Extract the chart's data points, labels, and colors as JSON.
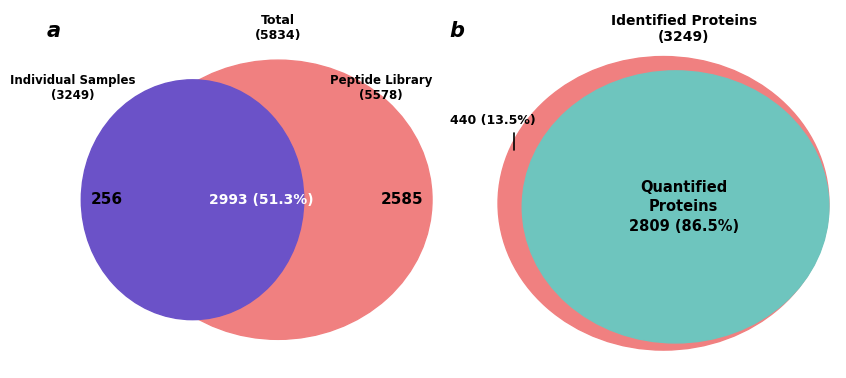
{
  "panel_a": {
    "label": "a",
    "total_label": "Total\n(5834)",
    "circle1_label": "Individual Samples\n(3249)",
    "circle2_label": "Peptide Library\n(5578)",
    "circle1_color": "#6B52C8",
    "circle1_edge_color": "#8878E8",
    "circle2_color": "#F08080",
    "overlap_label": "2993 (51.3%)",
    "left_only_label": "256",
    "right_only_label": "2585"
  },
  "panel_b": {
    "label": "b",
    "outer_label": "Identified Proteins\n(3249)",
    "outer_color": "#F08080",
    "inner_color": "#6EC5BE",
    "inner_label": "Quantified\nProteins\n2809 (86.5%)",
    "outer_only_label": "440 (13.5%)"
  },
  "background_color": "#FFFFFF"
}
